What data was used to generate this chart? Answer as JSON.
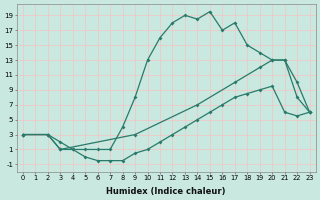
{
  "xlabel": "Humidex (Indice chaleur)",
  "ylabel": "",
  "xlim": [
    -0.5,
    23.5
  ],
  "ylim": [
    -2,
    20.5
  ],
  "bg_color": "#c8e8e0",
  "grid_color": "#f0c8c8",
  "line_color": "#2a7a6a",
  "xticks": [
    0,
    1,
    2,
    3,
    4,
    5,
    6,
    7,
    8,
    9,
    10,
    11,
    12,
    13,
    14,
    15,
    16,
    17,
    18,
    19,
    20,
    21,
    22,
    23
  ],
  "yticks": [
    -1,
    1,
    3,
    5,
    7,
    9,
    11,
    13,
    15,
    17,
    19
  ],
  "curve1_x": [
    0,
    2,
    3,
    4,
    5,
    6,
    7,
    8,
    9,
    10,
    11,
    12,
    13,
    14,
    15,
    16,
    17,
    18,
    19,
    20,
    21,
    22,
    23
  ],
  "curve1_y": [
    3,
    3,
    2,
    1,
    1,
    1,
    1,
    4,
    8,
    13,
    16,
    18,
    19,
    18.5,
    19.5,
    17,
    18,
    15,
    14,
    13,
    13,
    8,
    6
  ],
  "curve2_x": [
    0,
    2,
    3,
    9,
    14,
    17,
    19,
    20,
    21,
    22,
    23
  ],
  "curve2_y": [
    3,
    3,
    1,
    3,
    7,
    10,
    12,
    13,
    13,
    10,
    6
  ],
  "curve3_x": [
    0,
    2,
    3,
    4,
    5,
    6,
    7,
    8,
    9,
    10,
    11,
    12,
    13,
    14,
    15,
    16,
    17,
    18,
    19,
    20,
    21,
    22,
    23
  ],
  "curve3_y": [
    3,
    3,
    1,
    1,
    0,
    -0.5,
    -0.5,
    -0.5,
    0.5,
    1,
    2,
    3,
    4,
    5,
    6,
    7,
    8,
    8.5,
    9,
    9.5,
    6,
    5.5,
    6
  ]
}
